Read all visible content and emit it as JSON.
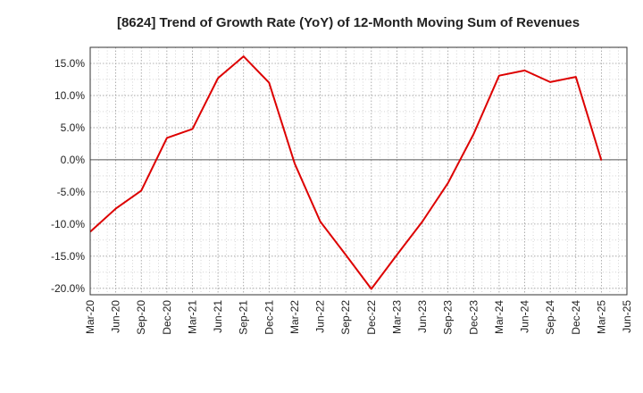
{
  "chart_data": {
    "type": "line",
    "title": "[8624]  Trend of Growth Rate (YoY) of 12-Month Moving Sum of Revenues",
    "xlabel": "",
    "ylabel": "",
    "x_tick_labels": [
      "Mar-20",
      "Jun-20",
      "Sep-20",
      "Dec-20",
      "Mar-21",
      "Jun-21",
      "Sep-21",
      "Dec-21",
      "Mar-22",
      "Jun-22",
      "Sep-22",
      "Dec-22",
      "Mar-23",
      "Jun-23",
      "Sep-23",
      "Dec-23",
      "Mar-24",
      "Jun-24",
      "Sep-24",
      "Dec-24",
      "Mar-25",
      "Jun-25"
    ],
    "y_ticks": [
      15,
      10,
      5,
      0,
      -5,
      -10,
      -15,
      -20
    ],
    "y_tick_labels": [
      "15.0%",
      "10.0%",
      "5.0%",
      "0.0%",
      "-5.0%",
      "-10.0%",
      "-15.0%",
      "-20.0%"
    ],
    "ylim": [
      -21,
      17.5
    ],
    "grid": true,
    "line_color": "#dd0000",
    "series": [
      {
        "x": [
          "Mar-20",
          "Jun-20",
          "Sep-20",
          "Dec-20",
          "Mar-21",
          "Jun-21",
          "Sep-21",
          "Dec-21",
          "Mar-22",
          "Jun-22",
          "Sep-22",
          "Dec-22",
          "Mar-23",
          "Jun-23",
          "Sep-23",
          "Dec-23",
          "Mar-24",
          "Jun-24",
          "Sep-24",
          "Dec-24",
          "Mar-25"
        ],
        "values": [
          -11.2,
          -7.6,
          -4.8,
          3.4,
          4.8,
          12.7,
          16.1,
          12.0,
          -0.6,
          -9.6,
          -14.8,
          -20.1,
          -14.8,
          -9.6,
          -3.6,
          4.0,
          13.1,
          13.9,
          12.1,
          12.9,
          -0.1
        ]
      }
    ]
  }
}
